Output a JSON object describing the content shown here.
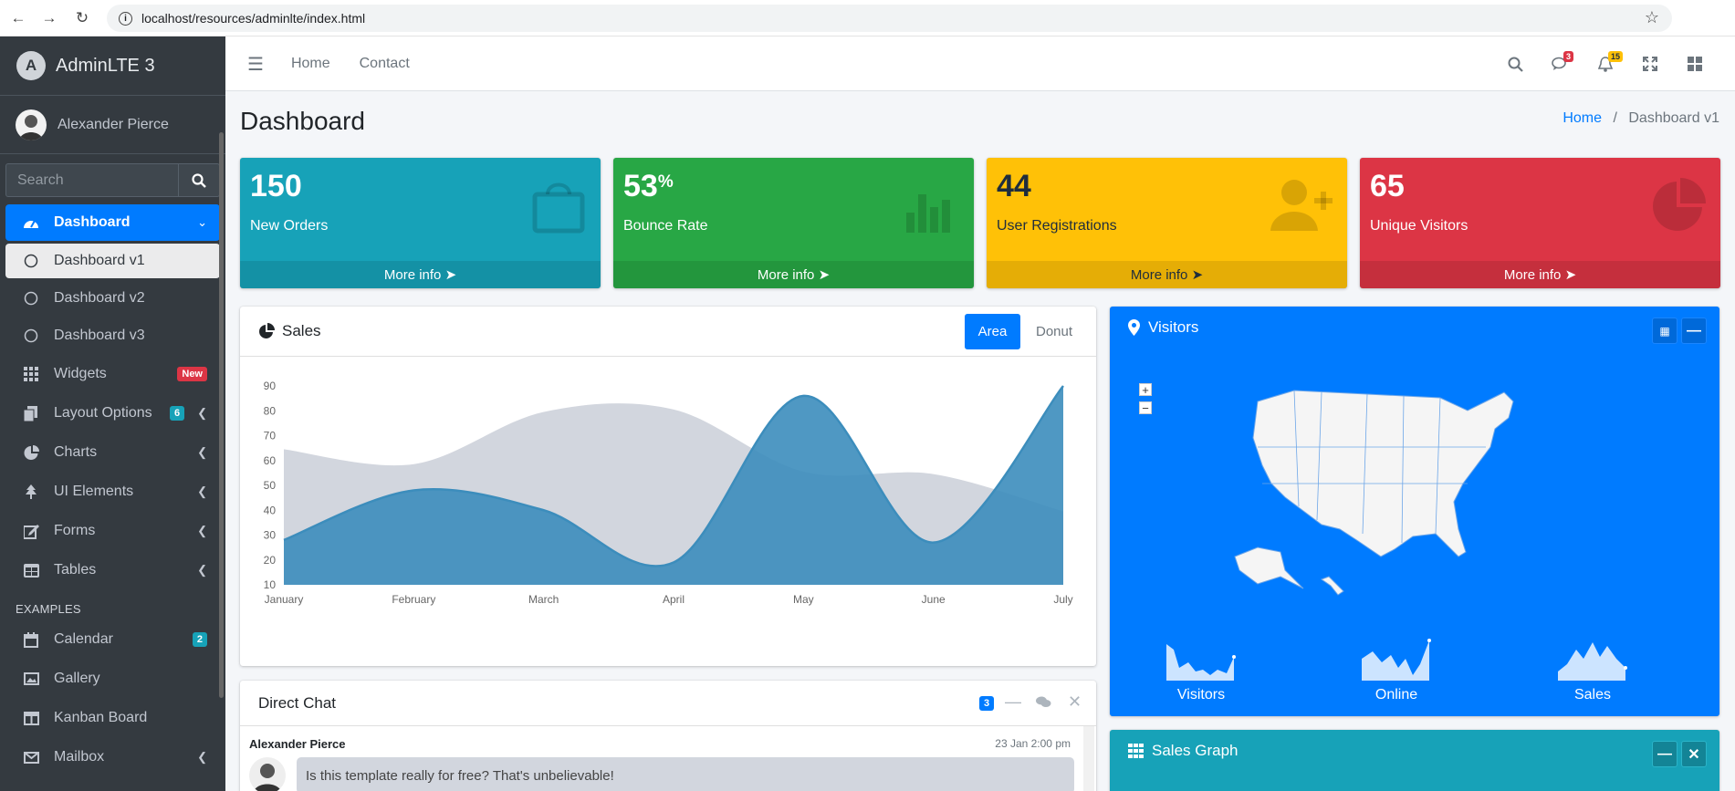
{
  "browser": {
    "url": "localhost/resources/adminlte/index.html"
  },
  "sidebar": {
    "brand": "AdminLTE 3",
    "user": "Alexander Pierce",
    "search_placeholder": "Search",
    "items": [
      {
        "label": "Dashboard"
      },
      {
        "label": "Dashboard v1"
      },
      {
        "label": "Dashboard v2"
      },
      {
        "label": "Dashboard v3"
      },
      {
        "label": "Widgets",
        "badge": "New"
      },
      {
        "label": "Layout Options",
        "badge": "6"
      },
      {
        "label": "Charts"
      },
      {
        "label": "UI Elements"
      },
      {
        "label": "Forms"
      },
      {
        "label": "Tables"
      }
    ],
    "examples_header": "EXAMPLES",
    "examples": [
      {
        "label": "Calendar",
        "badge": "2"
      },
      {
        "label": "Gallery"
      },
      {
        "label": "Kanban Board"
      },
      {
        "label": "Mailbox"
      }
    ]
  },
  "topnav": {
    "home": "Home",
    "contact": "Contact",
    "messages_count": "3",
    "notifications_count": "15"
  },
  "page": {
    "title": "Dashboard",
    "breadcrumb_home": "Home",
    "breadcrumb_current": "Dashboard v1"
  },
  "boxes": [
    {
      "value": "150",
      "label": "New Orders",
      "footer": "More info",
      "color": "#17a2b8"
    },
    {
      "value": "53",
      "suffix": "%",
      "label": "Bounce Rate",
      "footer": "More info",
      "color": "#28a745"
    },
    {
      "value": "44",
      "label": "User Registrations",
      "footer": "More info",
      "color": "#ffc107"
    },
    {
      "value": "65",
      "label": "Unique Visitors",
      "footer": "More info",
      "color": "#dc3545"
    }
  ],
  "sales": {
    "title": "Sales",
    "tab_area": "Area",
    "tab_donut": "Donut"
  },
  "chart_data": {
    "type": "area",
    "categories": [
      "January",
      "February",
      "March",
      "April",
      "May",
      "June",
      "July"
    ],
    "series": [
      {
        "values": [
          28,
          48,
          40,
          19,
          86,
          27,
          90
        ],
        "color": "#3c8dbc"
      },
      {
        "values": [
          65,
          59,
          80,
          81,
          56,
          55,
          40
        ],
        "color": "#d2d6de"
      }
    ],
    "ylim": [
      10,
      90
    ],
    "yticks": [
      10,
      20,
      30,
      40,
      50,
      60,
      70,
      80,
      90
    ]
  },
  "visitors": {
    "title": "Visitors",
    "spark": [
      "Visitors",
      "Online",
      "Sales"
    ]
  },
  "chat": {
    "title": "Direct Chat",
    "badge": "3",
    "msg_name": "Alexander Pierce",
    "msg_time": "23 Jan 2:00 pm",
    "msg_text": "Is this template really for free? That's unbelievable!"
  },
  "graph": {
    "title": "Sales Graph"
  }
}
